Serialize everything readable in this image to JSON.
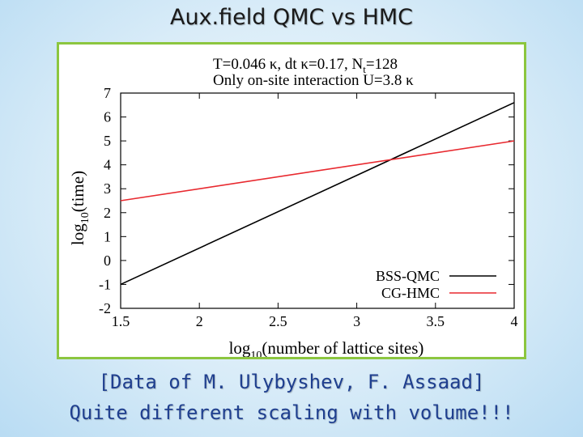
{
  "slide": {
    "title": "Aux.field QMC vs HMC",
    "caption_line1": "[Data of M. Ulybyshev, F. Assaad]",
    "caption_line2": "Quite different scaling with volume!!!"
  },
  "colors": {
    "frame_border": "#8cc63f",
    "bss_qmc": "#000000",
    "cg_hmc": "#e8292f",
    "caption_text": "#1f3f8f"
  },
  "chart_data": {
    "type": "line",
    "annotation_line1": "T=0.046 κ, dt κ=0.17, N",
    "annotation_line1_sub": "t",
    "annotation_line1_tail": "=128",
    "annotation_line2": "Only on-site interaction U=3.8 κ",
    "xlabel_prefix": "log",
    "xlabel_sub": "10",
    "xlabel_suffix": "(number of lattice sites)",
    "ylabel_prefix": "log",
    "ylabel_sub": "10",
    "ylabel_suffix": "(time)",
    "xlim": [
      1.5,
      4
    ],
    "ylim": [
      -2,
      7
    ],
    "x_ticks": [
      "1.5",
      "2",
      "2.5",
      "3",
      "3.5",
      "4"
    ],
    "y_ticks": [
      "-2",
      "-1",
      "0",
      "1",
      "2",
      "3",
      "4",
      "5",
      "6",
      "7"
    ],
    "grid": false,
    "legend_position": "bottom-right",
    "series": [
      {
        "name": "BSS-QMC",
        "color": "#000000",
        "x": [
          1.5,
          4
        ],
        "y": [
          -1.0,
          6.6
        ]
      },
      {
        "name": "CG-HMC",
        "color": "#e8292f",
        "x": [
          1.5,
          4
        ],
        "y": [
          2.5,
          5.0
        ]
      }
    ]
  }
}
